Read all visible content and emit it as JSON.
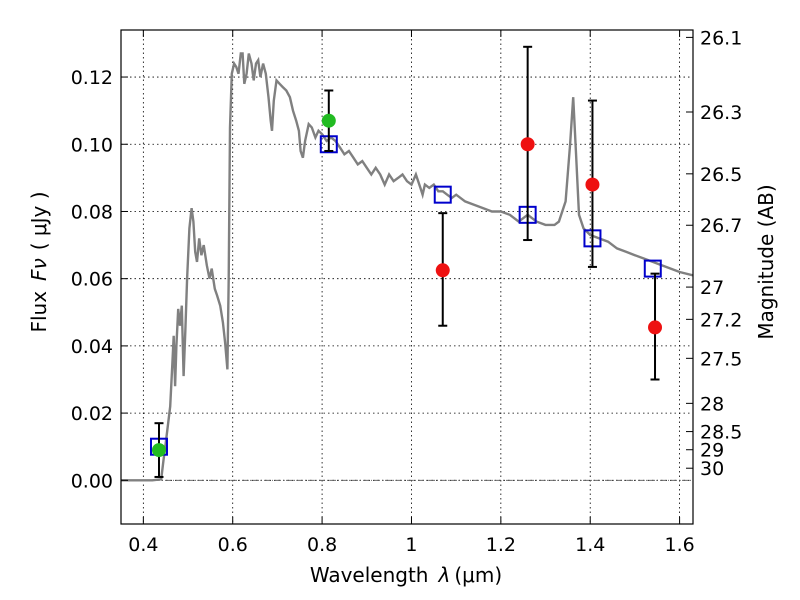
{
  "chart_data": {
    "type": "scatter",
    "xlabel_prefix": "Wavelength",
    "xlabel_lambda": "λ",
    "xlabel_unit": "(μm)",
    "ylabel_prefix": "Flux",
    "ylabel_symbol": "Fν",
    "ylabel_unit": "( μJy )",
    "y2label": "Magnitude (AB)",
    "xlim": [
      0.35,
      1.63
    ],
    "ylim": [
      -0.013,
      0.134
    ],
    "grid": true,
    "x_ticks": [
      {
        "v": 0.4,
        "label": "0.4"
      },
      {
        "v": 0.6,
        "label": "0.6"
      },
      {
        "v": 0.8,
        "label": "0.8"
      },
      {
        "v": 1.0,
        "label": "1"
      },
      {
        "v": 1.2,
        "label": "1.2"
      },
      {
        "v": 1.4,
        "label": "1.4"
      },
      {
        "v": 1.6,
        "label": "1.6"
      }
    ],
    "y_ticks": [
      {
        "v": 0.0,
        "label": "0.00"
      },
      {
        "v": 0.02,
        "label": "0.02"
      },
      {
        "v": 0.04,
        "label": "0.04"
      },
      {
        "v": 0.06,
        "label": "0.06"
      },
      {
        "v": 0.08,
        "label": "0.08"
      },
      {
        "v": 0.1,
        "label": "0.10"
      },
      {
        "v": 0.12,
        "label": "0.12"
      }
    ],
    "mag_ticks": [
      {
        "label": "26.1",
        "flux": 0.1318
      },
      {
        "label": "26.3",
        "flux": 0.1096
      },
      {
        "label": "26.5",
        "flux": 0.0912
      },
      {
        "label": "26.7",
        "flux": 0.0759
      },
      {
        "label": "27",
        "flux": 0.0575
      },
      {
        "label": "27.2",
        "flux": 0.0479
      },
      {
        "label": "27.5",
        "flux": 0.0363
      },
      {
        "label": "28",
        "flux": 0.0229
      },
      {
        "label": "28.5",
        "flux": 0.0145
      },
      {
        "label": "29",
        "flux": 0.0091
      },
      {
        "label": "30",
        "flux": 0.0036
      }
    ],
    "model_sed": {
      "color": "#808080",
      "points": [
        [
          0.35,
          0.0
        ],
        [
          0.42,
          0.0
        ],
        [
          0.44,
          0.0003
        ],
        [
          0.445,
          0.006
        ],
        [
          0.45,
          0.011
        ],
        [
          0.46,
          0.022
        ],
        [
          0.465,
          0.035
        ],
        [
          0.468,
          0.043
        ],
        [
          0.471,
          0.028
        ],
        [
          0.474,
          0.04
        ],
        [
          0.478,
          0.051
        ],
        [
          0.482,
          0.046
        ],
        [
          0.486,
          0.052
        ],
        [
          0.49,
          0.031
        ],
        [
          0.494,
          0.045
        ],
        [
          0.498,
          0.06
        ],
        [
          0.503,
          0.075
        ],
        [
          0.508,
          0.081
        ],
        [
          0.512,
          0.077
        ],
        [
          0.516,
          0.068
        ],
        [
          0.52,
          0.065
        ],
        [
          0.525,
          0.072
        ],
        [
          0.53,
          0.067
        ],
        [
          0.535,
          0.07
        ],
        [
          0.542,
          0.064
        ],
        [
          0.548,
          0.06
        ],
        [
          0.553,
          0.063
        ],
        [
          0.56,
          0.057
        ],
        [
          0.565,
          0.055
        ],
        [
          0.572,
          0.052
        ],
        [
          0.578,
          0.047
        ],
        [
          0.583,
          0.041
        ],
        [
          0.588,
          0.033
        ],
        [
          0.591,
          0.06
        ],
        [
          0.594,
          0.105
        ],
        [
          0.598,
          0.121
        ],
        [
          0.603,
          0.124
        ],
        [
          0.608,
          0.123
        ],
        [
          0.613,
          0.121
        ],
        [
          0.618,
          0.127
        ],
        [
          0.622,
          0.127
        ],
        [
          0.626,
          0.118
        ],
        [
          0.631,
          0.121
        ],
        [
          0.636,
          0.127
        ],
        [
          0.642,
          0.124
        ],
        [
          0.647,
          0.119
        ],
        [
          0.652,
          0.124
        ],
        [
          0.657,
          0.125
        ],
        [
          0.662,
          0.12
        ],
        [
          0.668,
          0.124
        ],
        [
          0.674,
          0.121
        ],
        [
          0.68,
          0.114
        ],
        [
          0.685,
          0.107
        ],
        [
          0.688,
          0.104
        ],
        [
          0.692,
          0.113
        ],
        [
          0.698,
          0.119
        ],
        [
          0.705,
          0.118
        ],
        [
          0.712,
          0.117
        ],
        [
          0.72,
          0.116
        ],
        [
          0.728,
          0.114
        ],
        [
          0.735,
          0.11
        ],
        [
          0.742,
          0.107
        ],
        [
          0.748,
          0.104
        ],
        [
          0.752,
          0.098
        ],
        [
          0.757,
          0.096
        ],
        [
          0.762,
          0.101
        ],
        [
          0.77,
          0.106
        ],
        [
          0.777,
          0.105
        ],
        [
          0.785,
          0.102
        ],
        [
          0.792,
          0.104
        ],
        [
          0.8,
          0.103
        ],
        [
          0.81,
          0.101
        ],
        [
          0.82,
          0.102
        ],
        [
          0.83,
          0.101
        ],
        [
          0.84,
          0.099
        ],
        [
          0.85,
          0.097
        ],
        [
          0.86,
          0.098
        ],
        [
          0.87,
          0.096
        ],
        [
          0.88,
          0.094
        ],
        [
          0.89,
          0.095
        ],
        [
          0.9,
          0.093
        ],
        [
          0.91,
          0.091
        ],
        [
          0.92,
          0.093
        ],
        [
          0.93,
          0.091
        ],
        [
          0.94,
          0.088
        ],
        [
          0.95,
          0.091
        ],
        [
          0.96,
          0.089
        ],
        [
          0.97,
          0.09
        ],
        [
          0.98,
          0.091
        ],
        [
          0.99,
          0.089
        ],
        [
          1.0,
          0.088
        ],
        [
          1.01,
          0.091
        ],
        [
          1.02,
          0.087
        ],
        [
          1.025,
          0.085
        ],
        [
          1.03,
          0.088
        ],
        [
          1.04,
          0.087
        ],
        [
          1.05,
          0.088
        ],
        [
          1.06,
          0.086
        ],
        [
          1.07,
          0.086
        ],
        [
          1.08,
          0.085
        ],
        [
          1.09,
          0.084
        ],
        [
          1.1,
          0.085
        ],
        [
          1.12,
          0.083
        ],
        [
          1.14,
          0.082
        ],
        [
          1.16,
          0.081
        ],
        [
          1.18,
          0.08
        ],
        [
          1.2,
          0.08
        ],
        [
          1.22,
          0.079
        ],
        [
          1.24,
          0.077
        ],
        [
          1.25,
          0.078
        ],
        [
          1.26,
          0.079
        ],
        [
          1.27,
          0.078
        ],
        [
          1.28,
          0.077
        ],
        [
          1.3,
          0.076
        ],
        [
          1.32,
          0.076
        ],
        [
          1.33,
          0.077
        ],
        [
          1.345,
          0.083
        ],
        [
          1.355,
          0.1
        ],
        [
          1.362,
          0.114
        ],
        [
          1.368,
          0.098
        ],
        [
          1.375,
          0.079
        ],
        [
          1.385,
          0.075
        ],
        [
          1.4,
          0.073
        ],
        [
          1.42,
          0.072
        ],
        [
          1.44,
          0.071
        ],
        [
          1.46,
          0.069
        ],
        [
          1.48,
          0.068
        ],
        [
          1.5,
          0.067
        ],
        [
          1.52,
          0.066
        ],
        [
          1.54,
          0.065
        ],
        [
          1.56,
          0.064
        ],
        [
          1.58,
          0.063
        ],
        [
          1.6,
          0.062
        ],
        [
          1.63,
          0.061
        ]
      ]
    },
    "series": [
      {
        "marker": "open-square",
        "color": "#0000cc",
        "points": [
          {
            "x": 0.435,
            "y": 0.01
          },
          {
            "x": 0.815,
            "y": 0.1
          },
          {
            "x": 1.07,
            "y": 0.085
          },
          {
            "x": 1.26,
            "y": 0.079
          },
          {
            "x": 1.405,
            "y": 0.072
          },
          {
            "x": 1.54,
            "y": 0.063
          }
        ]
      },
      {
        "marker": "filled-circle",
        "color": "#22bb22",
        "points": [
          {
            "x": 0.435,
            "y": 0.009,
            "err": [
              0.001,
              0.017
            ]
          },
          {
            "x": 0.815,
            "y": 0.107,
            "err": [
              0.098,
              0.116
            ]
          }
        ]
      },
      {
        "marker": "filled-circle",
        "color": "#ee1111",
        "points": [
          {
            "x": 1.07,
            "y": 0.0625,
            "err": [
              0.046,
              0.0795
            ]
          },
          {
            "x": 1.26,
            "y": 0.1,
            "err": [
              0.0715,
              0.129
            ]
          },
          {
            "x": 1.405,
            "y": 0.088,
            "err": [
              0.0635,
              0.113
            ]
          },
          {
            "x": 1.545,
            "y": 0.0455,
            "err": [
              0.03,
              0.0615
            ]
          }
        ]
      }
    ]
  }
}
